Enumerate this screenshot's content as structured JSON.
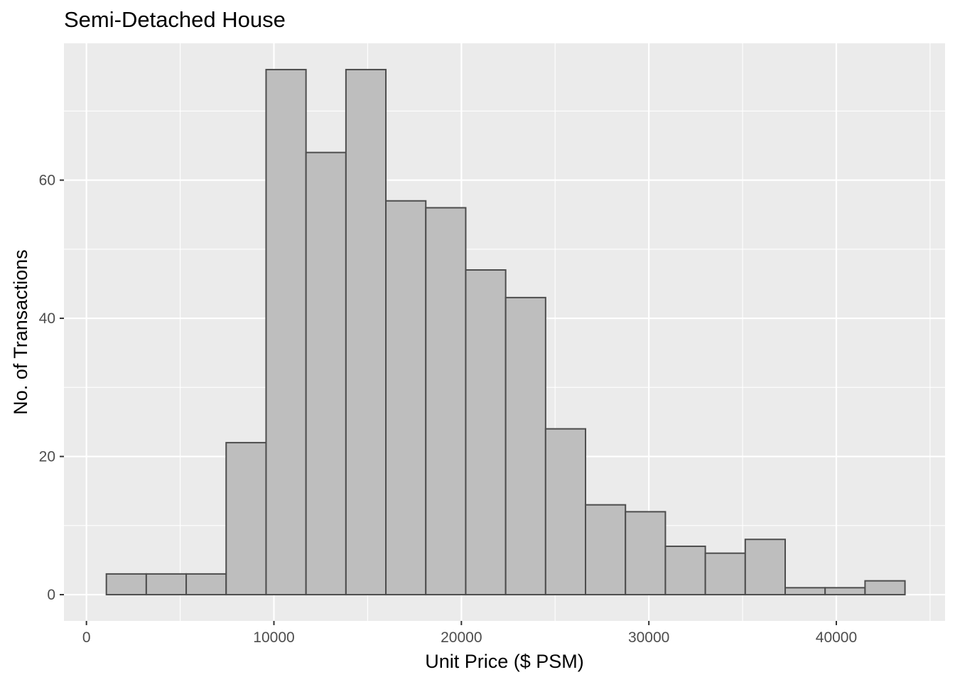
{
  "chart_data": {
    "type": "bar",
    "subtype": "histogram",
    "title": "Semi-Detached House",
    "xlabel": "Unit Price ($ PSM)",
    "ylabel": "No. of Transactions",
    "xlim": [
      -1200,
      45800
    ],
    "ylim": [
      -3.8,
      79.8
    ],
    "x_ticks": [
      0,
      10000,
      20000,
      30000,
      40000
    ],
    "x_tick_labels": [
      "0",
      "10000",
      "20000",
      "30000",
      "40000"
    ],
    "y_ticks": [
      0,
      20,
      40,
      60
    ],
    "y_tick_labels": [
      "0",
      "20",
      "40",
      "60"
    ],
    "grid": true,
    "panel_background": "#ebebeb",
    "bar_fill": "#bebebe",
    "bar_outline": "#4d4d4d",
    "bins": [
      {
        "x0": 1062,
        "x1": 3192,
        "value": 3
      },
      {
        "x0": 3192,
        "x1": 5322,
        "value": 3
      },
      {
        "x0": 5322,
        "x1": 7452,
        "value": 3
      },
      {
        "x0": 7452,
        "x1": 9582,
        "value": 22
      },
      {
        "x0": 9582,
        "x1": 11712,
        "value": 76
      },
      {
        "x0": 11712,
        "x1": 13842,
        "value": 64
      },
      {
        "x0": 13842,
        "x1": 15972,
        "value": 76
      },
      {
        "x0": 15972,
        "x1": 18102,
        "value": 57
      },
      {
        "x0": 18102,
        "x1": 20232,
        "value": 56
      },
      {
        "x0": 20232,
        "x1": 22362,
        "value": 47
      },
      {
        "x0": 22362,
        "x1": 24492,
        "value": 43
      },
      {
        "x0": 24492,
        "x1": 26622,
        "value": 24
      },
      {
        "x0": 26622,
        "x1": 28752,
        "value": 13
      },
      {
        "x0": 28752,
        "x1": 30882,
        "value": 12
      },
      {
        "x0": 30882,
        "x1": 33012,
        "value": 7
      },
      {
        "x0": 33012,
        "x1": 35142,
        "value": 6
      },
      {
        "x0": 35142,
        "x1": 37272,
        "value": 8
      },
      {
        "x0": 37272,
        "x1": 39402,
        "value": 1
      },
      {
        "x0": 39402,
        "x1": 41532,
        "value": 1
      },
      {
        "x0": 41532,
        "x1": 43662,
        "value": 2
      }
    ]
  }
}
